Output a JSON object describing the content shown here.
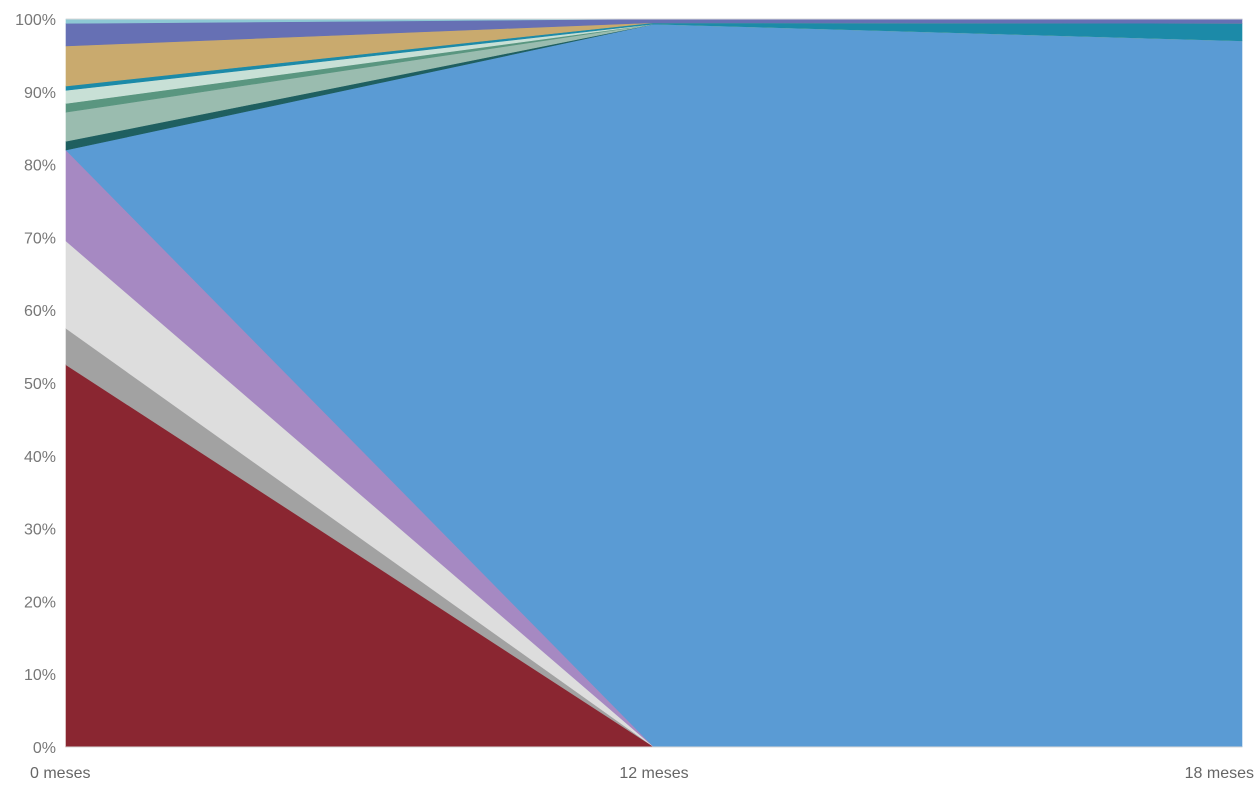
{
  "chart_data": {
    "type": "area",
    "stacked": true,
    "normalized": true,
    "x": [
      "0 meses",
      "12 meses",
      "18 meses"
    ],
    "y_ticks": [
      "0%",
      "10%",
      "20%",
      "30%",
      "40%",
      "50%",
      "60%",
      "70%",
      "80%",
      "90%",
      "100%"
    ],
    "ylim": [
      0,
      100
    ],
    "grid": false,
    "legend": "none",
    "series": [
      {
        "color": "#8a2631",
        "values": [
          52.5,
          0.0,
          0.0
        ]
      },
      {
        "color": "#a2a2a2",
        "values": [
          5.0,
          0.0,
          0.0
        ]
      },
      {
        "color": "#dddddd",
        "values": [
          12.0,
          0.0,
          0.0
        ]
      },
      {
        "color": "#a689c2",
        "values": [
          12.5,
          0.0,
          0.0
        ]
      },
      {
        "color": "#5a9bd4",
        "values": [
          0.0,
          99.3,
          97.0
        ]
      },
      {
        "color": "#1f5f60",
        "values": [
          1.2,
          0.0,
          0.0
        ]
      },
      {
        "color": "#9abcaf",
        "values": [
          4.0,
          0.0,
          0.0
        ]
      },
      {
        "color": "#5a9680",
        "values": [
          1.2,
          0.0,
          0.0
        ]
      },
      {
        "color": "#c8e0d6",
        "values": [
          1.8,
          0.0,
          0.0
        ]
      },
      {
        "color": "#1c8aa8",
        "values": [
          0.6,
          0.2,
          2.4
        ]
      },
      {
        "color": "#c9aa6e",
        "values": [
          5.5,
          0.0,
          0.0
        ]
      },
      {
        "color": "#6670b4",
        "values": [
          3.1,
          0.5,
          0.6
        ]
      },
      {
        "color": "#8dc8d4",
        "values": [
          0.6,
          0.0,
          0.0
        ]
      }
    ]
  }
}
